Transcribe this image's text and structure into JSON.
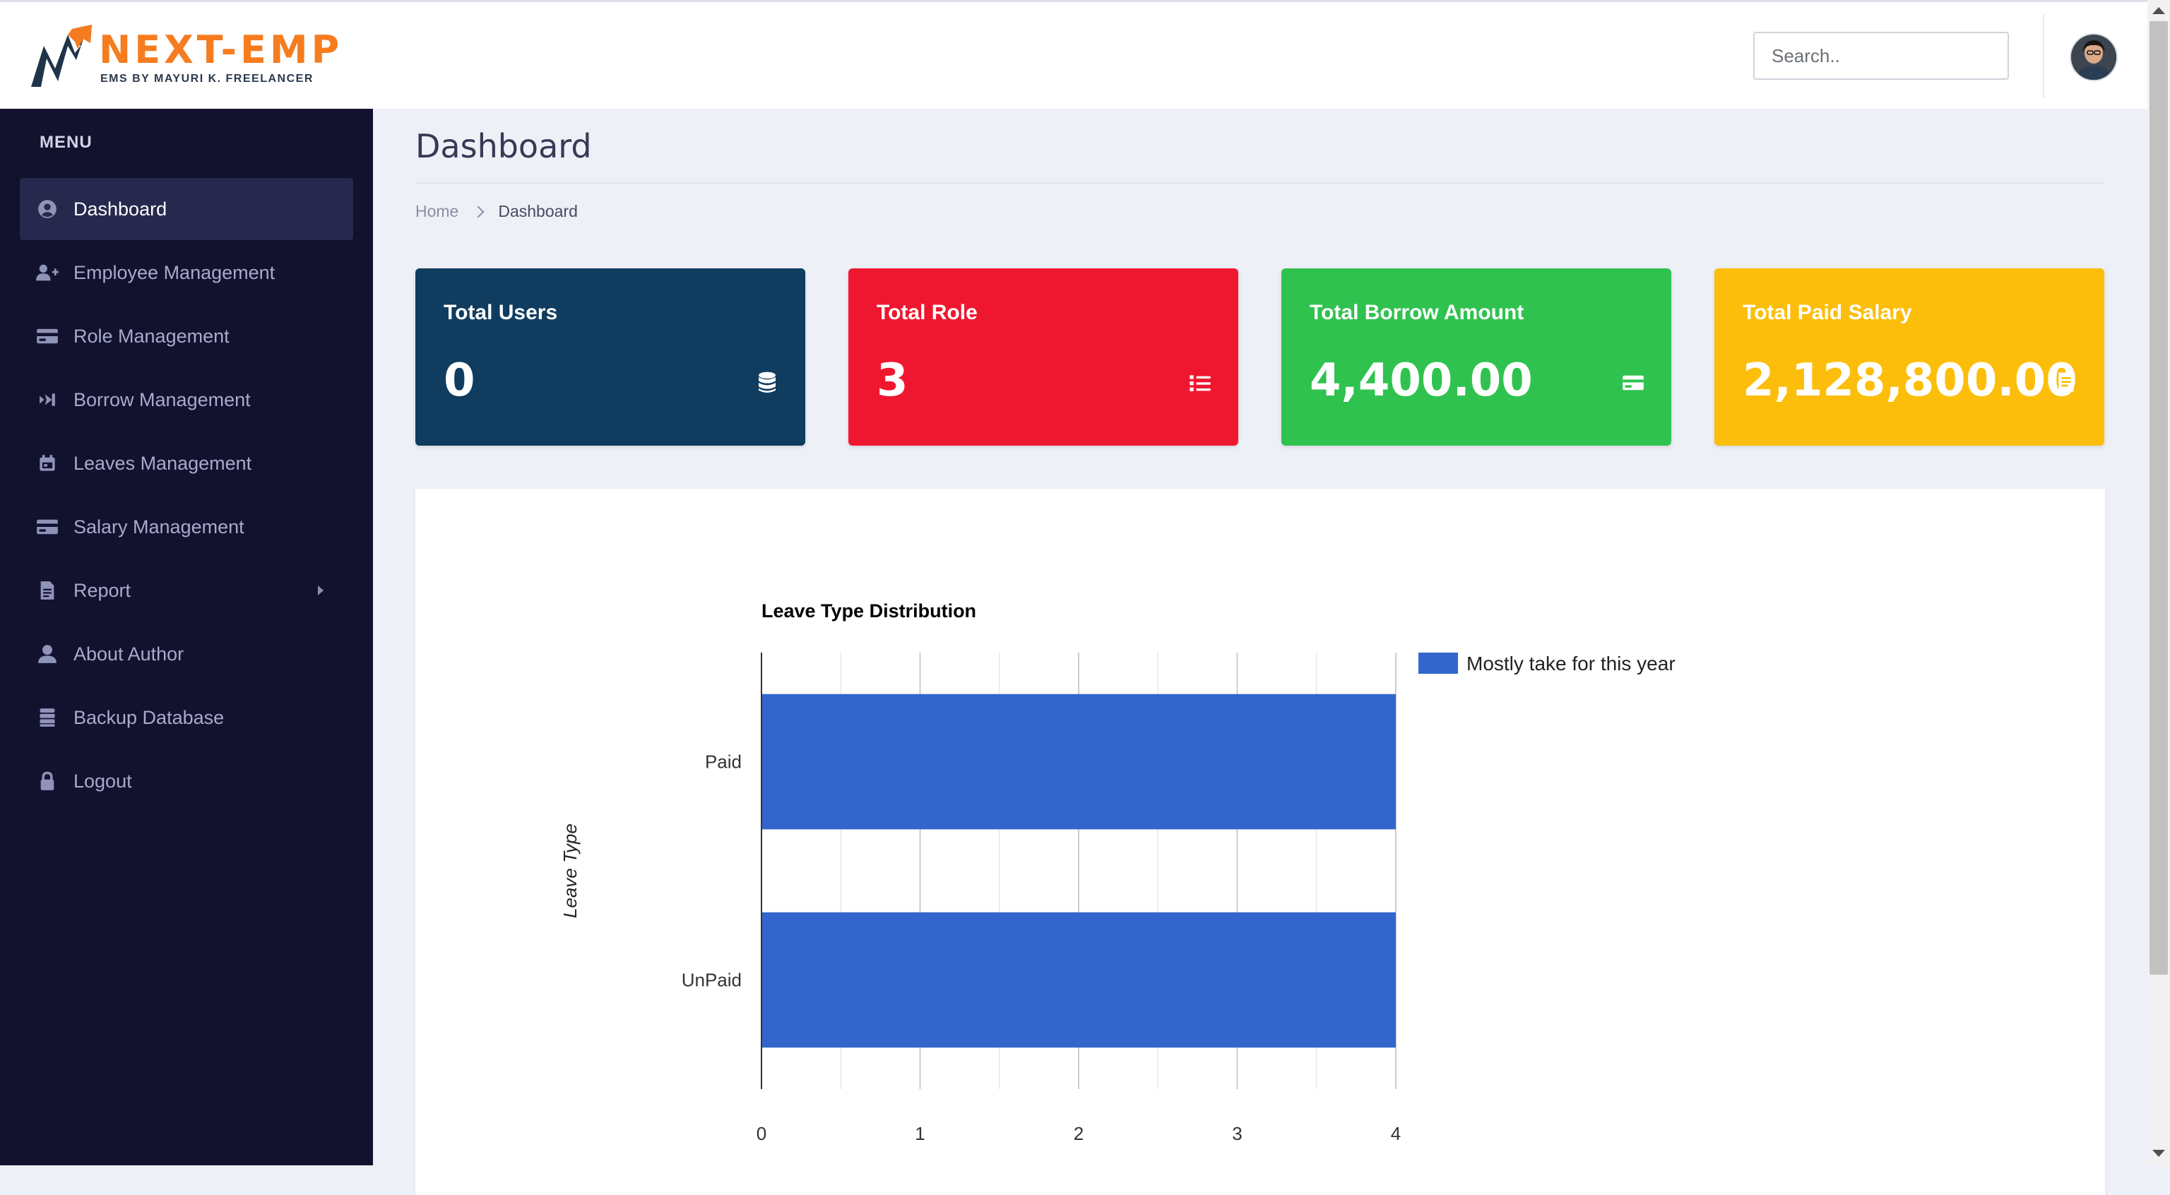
{
  "header": {
    "brand": "NEXT-EMP",
    "tagline": "EMS BY MAYURI K. FREELANCER",
    "search_placeholder": "Search.."
  },
  "sidebar": {
    "title": "MENU",
    "items": [
      {
        "label": "Dashboard",
        "icon": "user-circle-icon",
        "active": true
      },
      {
        "label": "Employee Management",
        "icon": "user-plus-icon"
      },
      {
        "label": "Role Management",
        "icon": "credit-card-icon"
      },
      {
        "label": "Borrow Management",
        "icon": "hand-money-icon"
      },
      {
        "label": "Leaves Management",
        "icon": "calendar-icon"
      },
      {
        "label": "Salary Management",
        "icon": "credit-card-icon"
      },
      {
        "label": "Report",
        "icon": "file-icon",
        "has_submenu": true
      },
      {
        "label": "About Author",
        "icon": "user-icon"
      },
      {
        "label": "Backup Database",
        "icon": "database-icon"
      },
      {
        "label": "Logout",
        "icon": "lock-icon"
      }
    ]
  },
  "page": {
    "title": "Dashboard",
    "breadcrumb": {
      "home": "Home",
      "current": "Dashboard"
    }
  },
  "cards": [
    {
      "label": "Total Users",
      "value": "0",
      "color": "#0f3c5f",
      "icon": "database-icon"
    },
    {
      "label": "Total Role",
      "value": "3",
      "color": "#ef1730",
      "icon": "list-icon"
    },
    {
      "label": "Total Borrow Amount",
      "value": "4,400.00",
      "color": "#30c24f",
      "icon": "credit-card-icon"
    },
    {
      "label": "Total Paid Salary",
      "value": "2,128,800.00",
      "color": "#fcbe0a",
      "icon": "receipt-icon"
    }
  ],
  "chart_data": {
    "type": "bar",
    "orientation": "horizontal",
    "title": "Leave Type Distribution",
    "ylabel": "Leave Type",
    "xlabel": "",
    "categories": [
      "Paid",
      "UnPaid"
    ],
    "series": [
      {
        "name": "Mostly take for this year",
        "values": [
          4,
          4
        ],
        "color": "#3366cc"
      }
    ],
    "xlim": [
      0,
      4
    ],
    "xticks": [
      0,
      1,
      2,
      3,
      4
    ],
    "grid": true,
    "legend": "right"
  }
}
